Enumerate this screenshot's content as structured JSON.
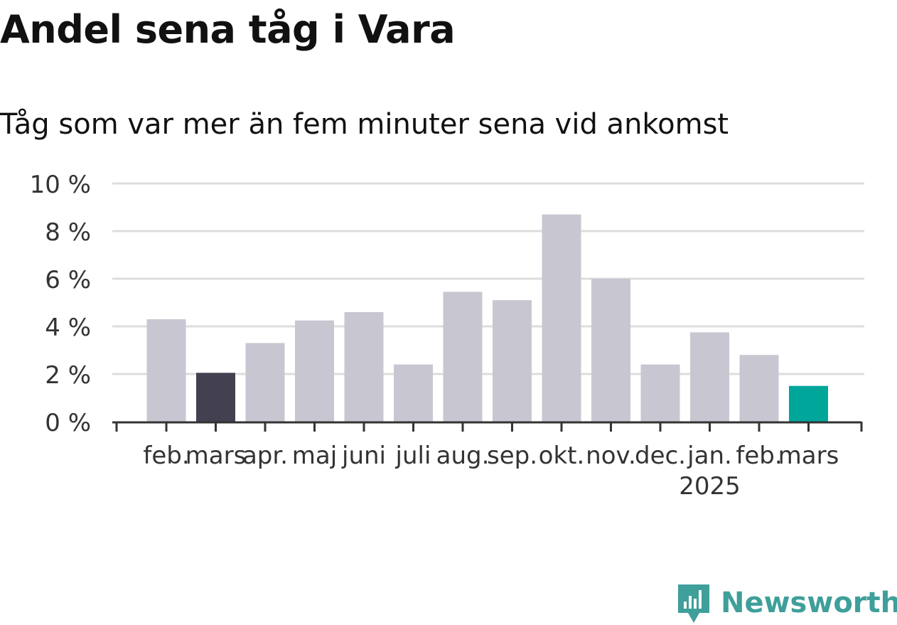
{
  "title": "Andel sena tåg i Vara",
  "subtitle": "Tåg som var mer än fem minuter sena vid ankomst",
  "brand": {
    "name": "Newsworthy",
    "icon": "bar-chart-logo-icon"
  },
  "colors": {
    "default_bar": "#c8c7d1",
    "highlight_prev": "#43414f",
    "highlight_current": "#00a69a",
    "grid": "#dddddd",
    "axis": "#333333",
    "brand": "#3f9f9a"
  },
  "chart_data": {
    "type": "bar",
    "categories": [
      "feb.",
      "mars",
      "apr.",
      "maj",
      "juni",
      "juli",
      "aug.",
      "sep.",
      "okt.",
      "nov.",
      "dec.",
      "jan.",
      "feb.",
      "mars"
    ],
    "year_labels": [
      {
        "index": 11,
        "label": "2025"
      }
    ],
    "values": [
      4.3,
      2.05,
      3.3,
      4.25,
      4.6,
      2.4,
      5.45,
      5.1,
      8.7,
      6.0,
      2.4,
      3.75,
      2.8,
      1.5
    ],
    "highlight": [
      {
        "index": 1,
        "color": "highlight_prev"
      },
      {
        "index": 13,
        "color": "highlight_current"
      }
    ],
    "yticks": [
      0,
      2,
      4,
      6,
      8,
      10
    ],
    "ytick_labels": [
      "0 %",
      "2 %",
      "4 %",
      "6 %",
      "8 %",
      "10 %"
    ],
    "ylim": [
      0,
      10
    ],
    "grid": true,
    "legend": "none"
  }
}
